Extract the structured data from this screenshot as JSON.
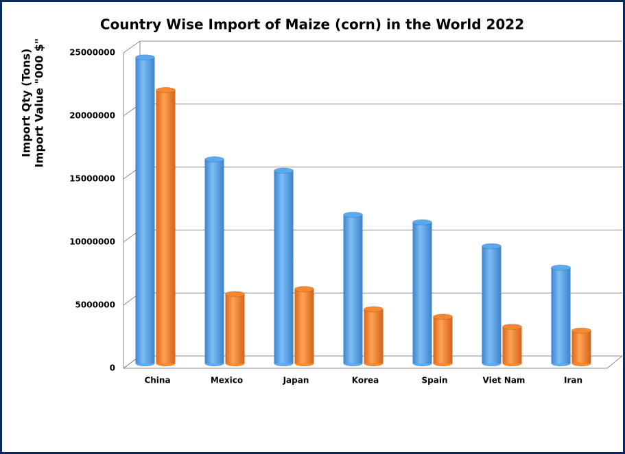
{
  "chart_data": {
    "type": "bar3d",
    "title": "Country Wise Import of Maize (corn) in the World 2022",
    "y_label": [
      "Import Qty (Tons)",
      "Import Value \"000 $\""
    ],
    "categories": [
      "China",
      "Mexico",
      "Japan",
      "Korea",
      "Spain",
      "Viet Nam",
      "Iran"
    ],
    "series": [
      {
        "color": "#5aa9f0",
        "values": [
          24200000,
          16100000,
          15200000,
          11700000,
          11100000,
          9200000,
          7500000
        ]
      },
      {
        "color": "#f7882f",
        "values": [
          21600000,
          5400000,
          5800000,
          4200000,
          3600000,
          2800000,
          2500000
        ]
      }
    ],
    "ylim": [
      0,
      25000000
    ],
    "yticks": [
      0,
      5000000,
      10000000,
      15000000,
      20000000,
      25000000
    ],
    "grid": true
  }
}
